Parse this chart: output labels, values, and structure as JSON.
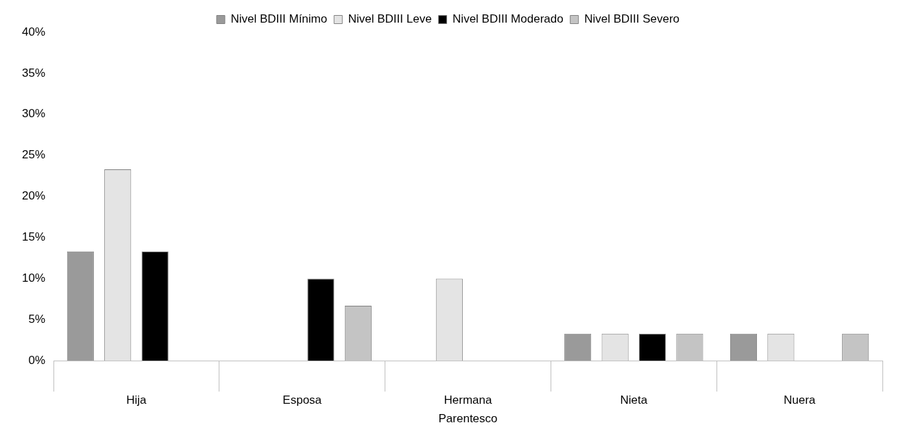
{
  "chart_data": {
    "type": "bar",
    "xlabel": "Parentesco",
    "categories": [
      "Hija",
      "Esposa",
      "Hermana",
      "Nieta",
      "Nuera"
    ],
    "series": [
      {
        "name": "Nivel BDIII Mínimo",
        "color": "#9a9a9a",
        "values": [
          13.3,
          0,
          0,
          3.3,
          3.3
        ]
      },
      {
        "name": "Nivel BDIII Leve",
        "color": "#e4e4e4",
        "values": [
          23.3,
          0,
          10,
          3.3,
          3.3
        ]
      },
      {
        "name": "Nivel BDIII Moderado",
        "color": "#000000",
        "values": [
          13.3,
          10,
          0,
          3.3,
          0
        ]
      },
      {
        "name": "Nivel BDIII Severo",
        "color": "#c4c4c4",
        "values": [
          0,
          6.7,
          0,
          3.3,
          3.3
        ]
      }
    ],
    "ylim": [
      0,
      40
    ],
    "yticks": [
      {
        "value": 0,
        "label": "0%"
      },
      {
        "value": 5,
        "label": "5%"
      },
      {
        "value": 10,
        "label": "10%"
      },
      {
        "value": 15,
        "label": "15%"
      },
      {
        "value": 20,
        "label": "20%"
      },
      {
        "value": 25,
        "label": "25%"
      },
      {
        "value": 30,
        "label": "30%"
      },
      {
        "value": 35,
        "label": "35%"
      },
      {
        "value": 40,
        "label": "40%"
      }
    ],
    "grid": false,
    "legend": "top"
  }
}
